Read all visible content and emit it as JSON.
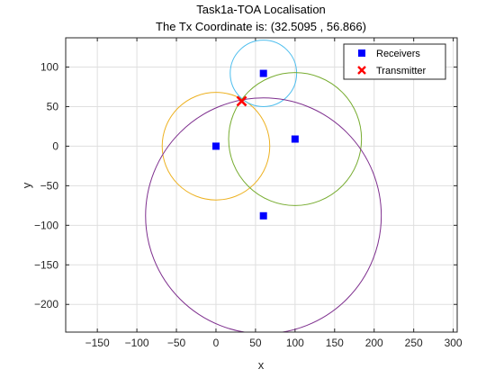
{
  "chart_data": {
    "type": "scatter",
    "title": "Task1a-TOA Localisation",
    "subtitle": "The Tx Coordinate is: (32.5095 , 56.866)",
    "xlabel": "x",
    "ylabel": "y",
    "xlim": [
      -190,
      305
    ],
    "ylim": [
      -235,
      137
    ],
    "xticks": [
      -150,
      -100,
      -50,
      0,
      50,
      100,
      150,
      200,
      250,
      300
    ],
    "yticks": [
      100,
      50,
      0,
      -50,
      -100,
      -150,
      -200
    ],
    "xtick_labels": [
      "−150",
      "−100",
      "−50",
      "0",
      "50",
      "100",
      "150",
      "200",
      "250",
      "300"
    ],
    "ytick_labels": [
      "100",
      "50",
      "0",
      "−50",
      "−100",
      "−150",
      "−200"
    ],
    "grid": true,
    "legend_position": "top-right",
    "series": [
      {
        "name": "Receivers",
        "marker": "square",
        "color": "#0000ff",
        "x": [
          0,
          60,
          100,
          60
        ],
        "y": [
          0,
          92,
          9,
          -88
        ]
      },
      {
        "name": "Transmitter",
        "marker": "x",
        "color": "#ff0000",
        "x": [
          32.5095
        ],
        "y": [
          56.866
        ]
      }
    ],
    "circles": [
      {
        "cx": 0,
        "cy": 0,
        "r": 68,
        "color": "#edb120"
      },
      {
        "cx": 60,
        "cy": 92,
        "r": 42,
        "color": "#4dbeee"
      },
      {
        "cx": 100,
        "cy": 9,
        "r": 84,
        "color": "#77ac30"
      },
      {
        "cx": 60,
        "cy": -88,
        "r": 149,
        "color": "#7e2f8e"
      }
    ]
  }
}
